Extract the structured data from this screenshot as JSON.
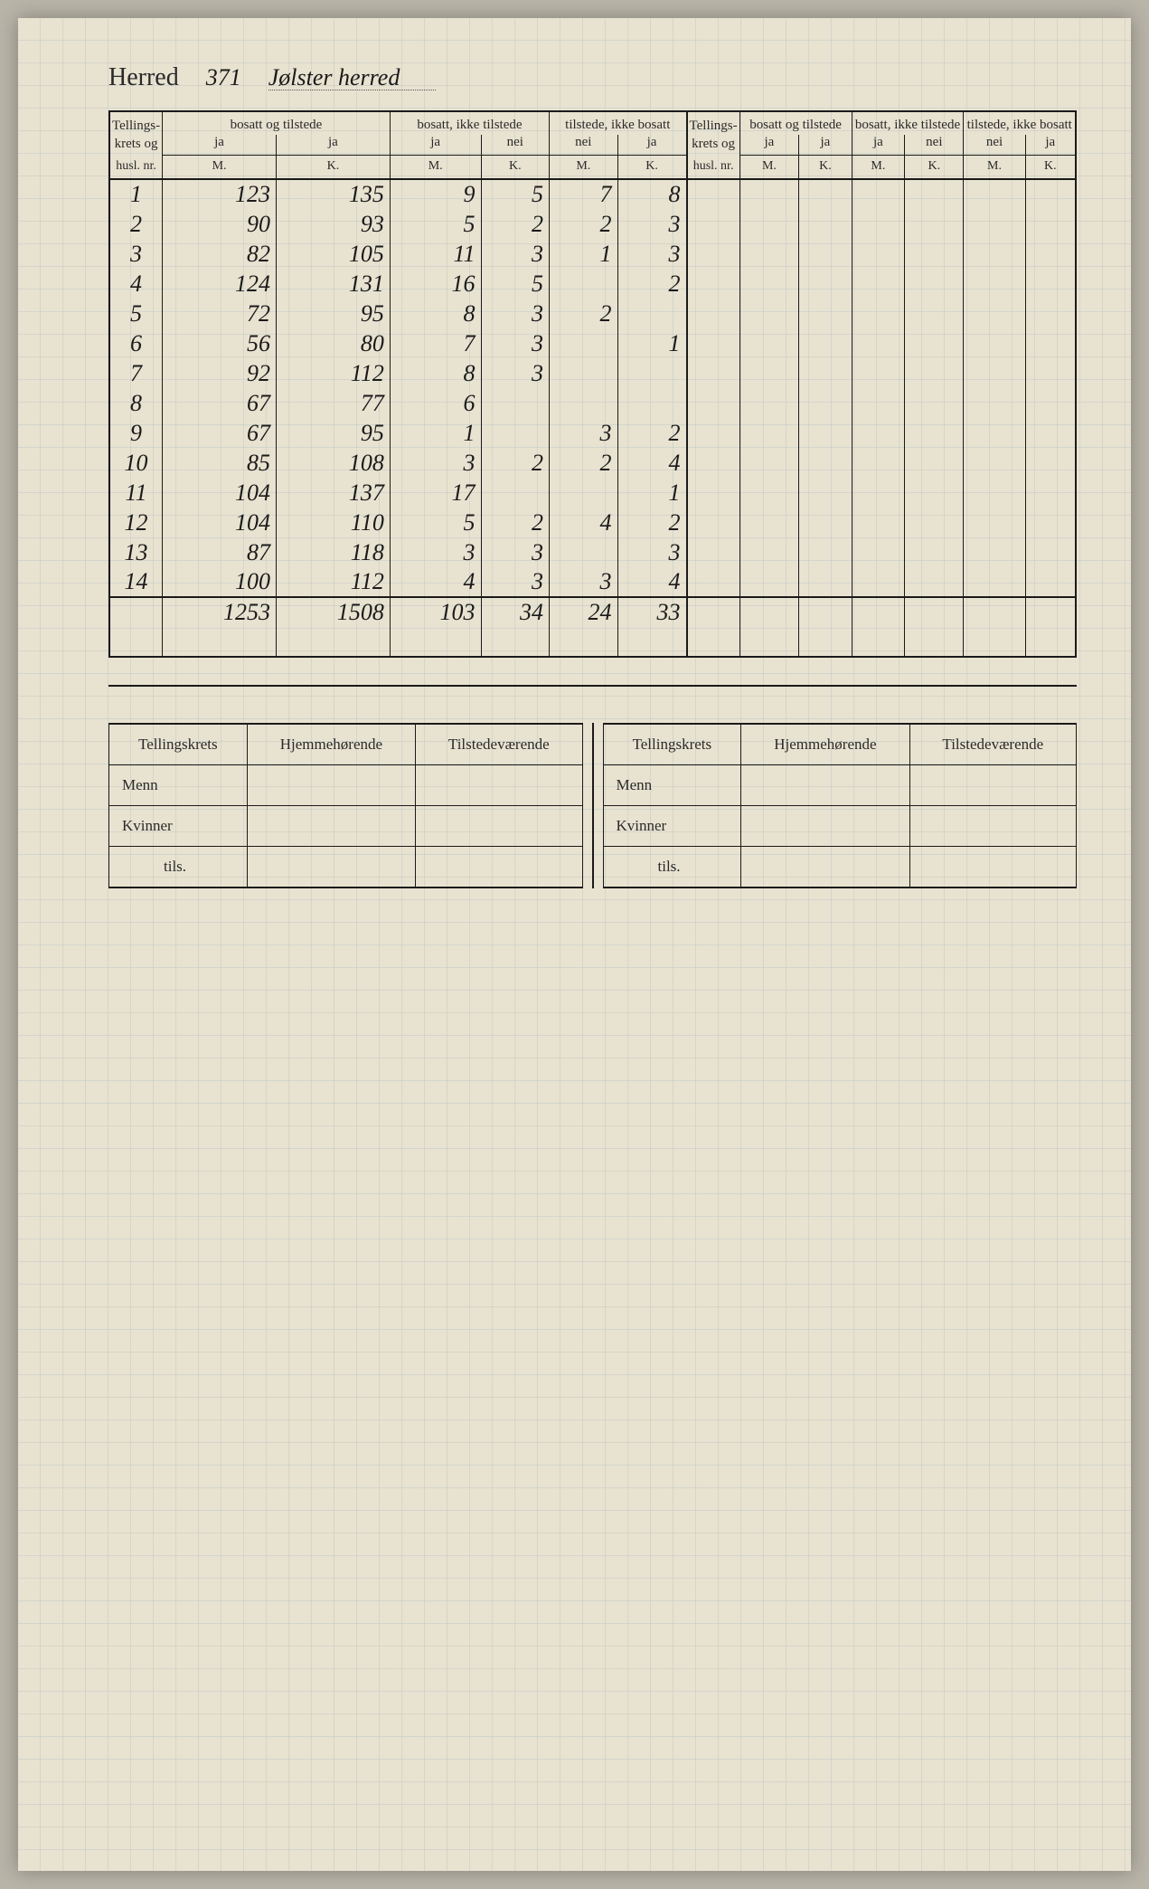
{
  "header": {
    "label": "Herred",
    "number": "371",
    "name": "Jølster herred"
  },
  "table": {
    "col_krets_lines": [
      "Tellings-",
      "krets og",
      "husl. nr."
    ],
    "groups": [
      {
        "title": "bosatt og tilstede",
        "sub": [
          "ja",
          "ja"
        ]
      },
      {
        "title": "bosatt, ikke tilstede",
        "sub": [
          "ja",
          "nei"
        ]
      },
      {
        "title": "tilstede, ikke bosatt",
        "sub": [
          "nei",
          "ja"
        ]
      }
    ],
    "mk": [
      "M.",
      "K."
    ],
    "rows": [
      {
        "n": "1",
        "c": [
          "123",
          "135",
          "9",
          "5",
          "7",
          "8",
          "",
          "",
          "",
          "",
          "",
          ""
        ]
      },
      {
        "n": "2",
        "c": [
          "90",
          "93",
          "5",
          "2",
          "2",
          "3",
          "",
          "",
          "",
          "",
          "",
          ""
        ]
      },
      {
        "n": "3",
        "c": [
          "82",
          "105",
          "11",
          "3",
          "1",
          "3",
          "",
          "",
          "",
          "",
          "",
          ""
        ]
      },
      {
        "n": "4",
        "c": [
          "124",
          "131",
          "16",
          "5",
          "",
          "2",
          "",
          "",
          "",
          "",
          "",
          ""
        ]
      },
      {
        "n": "5",
        "c": [
          "72",
          "95",
          "8",
          "3",
          "2",
          "",
          "",
          "",
          "",
          "",
          "",
          ""
        ]
      },
      {
        "n": "6",
        "c": [
          "56",
          "80",
          "7",
          "3",
          "",
          "1",
          "",
          "",
          "",
          "",
          "",
          ""
        ]
      },
      {
        "n": "7",
        "c": [
          "92",
          "112",
          "8",
          "3",
          "",
          "",
          "",
          "",
          "",
          "",
          "",
          ""
        ]
      },
      {
        "n": "8",
        "c": [
          "67",
          "77",
          "6",
          "",
          "",
          "",
          "",
          "",
          "",
          "",
          "",
          ""
        ]
      },
      {
        "n": "9",
        "c": [
          "67",
          "95",
          "1",
          "",
          "3",
          "2",
          "",
          "",
          "",
          "",
          "",
          ""
        ]
      },
      {
        "n": "10",
        "c": [
          "85",
          "108",
          "3",
          "2",
          "2",
          "4",
          "",
          "",
          "",
          "",
          "",
          ""
        ]
      },
      {
        "n": "11",
        "c": [
          "104",
          "137",
          "17",
          "",
          "",
          "1",
          "",
          "",
          "",
          "",
          "",
          ""
        ]
      },
      {
        "n": "12",
        "c": [
          "104",
          "110",
          "5",
          "2",
          "4",
          "2",
          "",
          "",
          "",
          "",
          "",
          ""
        ]
      },
      {
        "n": "13",
        "c": [
          "87",
          "118",
          "3",
          "3",
          "",
          "3",
          "",
          "",
          "",
          "",
          "",
          ""
        ]
      },
      {
        "n": "14",
        "c": [
          "100",
          "112",
          "4",
          "3",
          "3",
          "4",
          "",
          "",
          "",
          "",
          "",
          ""
        ]
      }
    ],
    "sum": [
      "1253",
      "1508",
      "103",
      "34",
      "24",
      "33",
      "",
      "",
      "",
      "",
      "",
      ""
    ]
  },
  "bottom": {
    "headers": [
      "Tellingskrets",
      "Hjemmehørende",
      "Tilstedeværende"
    ],
    "rows": [
      "Menn",
      "Kvinner",
      "tils."
    ]
  },
  "style": {
    "paper_bg": "#e8e2d0",
    "ink": "#1a1a1a",
    "print_text": "#2a2a2a",
    "grid_color": "rgba(150,180,190,0.25)",
    "handwriting_font": "Brush Script MT",
    "print_font": "Georgia"
  }
}
